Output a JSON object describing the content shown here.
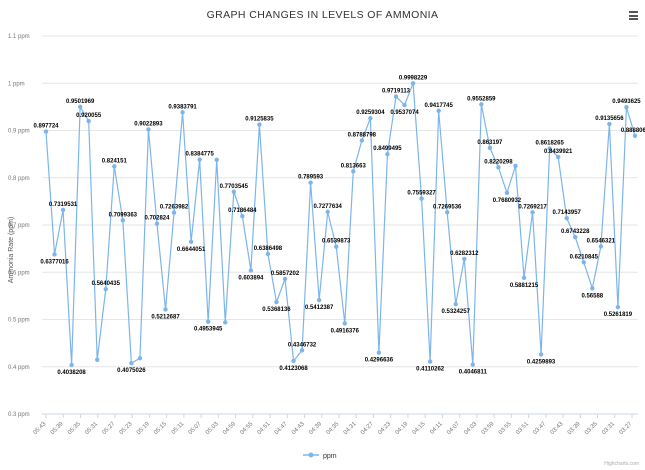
{
  "menu_icon": "hamburger-menu-icon",
  "credits": "Highcharts.com",
  "chart_data": {
    "type": "line",
    "title": "GRAPH CHANGES IN LEVELS OF AMMONIA",
    "ylabel": "Ammonia Rate (ppm)",
    "xlabel": "",
    "ylim": [
      0.3,
      1.1
    ],
    "y_ticks": [
      0.3,
      0.4,
      0.5,
      0.6,
      0.7,
      0.8,
      0.9,
      1.0,
      1.1
    ],
    "y_tick_labels": [
      "0.3 ppm",
      "0.4 ppm",
      "0.5 ppm",
      "0.6 ppm",
      "0.7 ppm",
      "0.8 ppm",
      "0.9 ppm",
      "1 ppm",
      "1.1 ppm"
    ],
    "x_tick_labels": [
      "05:43",
      "05:39",
      "05:35",
      "05:31",
      "05:27",
      "05:23",
      "05:19",
      "05:15",
      "05:11",
      "05:07",
      "05:03",
      "04:59",
      "04:55",
      "04:51",
      "04:47",
      "04:43",
      "04:39",
      "04:35",
      "04:31",
      "04:27",
      "04:23",
      "04:19",
      "04:15",
      "04:11",
      "04:07",
      "04:03",
      "03:59",
      "03:55",
      "03:51",
      "03:47",
      "03:43",
      "03:39",
      "03:35",
      "03:31",
      "03:27"
    ],
    "grid": true,
    "legend": "bottom-center",
    "series": [
      {
        "name": "ppm",
        "color": "#7cb5ec",
        "values": [
          "0.897724",
          "0.6377016",
          "0.7319531",
          "0.4038208",
          "0.9501969",
          "0.920055",
          "0.4148",
          "0.5640435",
          "0.824151",
          "0.7099363",
          "0.4075026",
          "0.4180",
          "0.9022893",
          "0.702824",
          "0.5212687",
          "0.7263982",
          "0.9383791",
          "0.6644051",
          "0.8384775",
          "0.4953945",
          "0.8380",
          "0.4940",
          "0.7703545",
          "0.7186484",
          "0.603894",
          "0.9125835",
          "0.6386498",
          "0.5368136",
          "0.5857202",
          "0.4123068",
          "0.4346732",
          "0.789593",
          "0.5412387",
          "0.7277634",
          "0.6539873",
          "0.4916376",
          "0.813663",
          "0.8788798",
          "0.9259304",
          "0.4296636",
          "0.8499495",
          "0.9719113",
          "0.9537074",
          "0.9998229",
          "0.7559327",
          "0.4110262",
          "0.9417745",
          "0.7269536",
          "0.5324257",
          "0.6282312",
          "0.4046811",
          "0.9552859",
          "0.863197",
          "0.8220298",
          "0.7680932",
          "0.8250",
          "0.5881215",
          "0.7269217",
          "0.4259893",
          "0.8618265",
          "0.8439921",
          "0.7143957",
          "0.6743228",
          "0.6210845",
          "0.56588",
          "0.6546321",
          "0.9135656",
          "0.5261819",
          "0.9493625",
          "0.8888069"
        ],
        "labels": [
          "0.897724",
          "0.6377016",
          "0.7319531",
          "0.4038208",
          "0.9501969",
          "0.920055",
          "",
          "0.5640435",
          "0.824151",
          "0.7099363",
          "0.4075026",
          "",
          "0.9022893",
          "0.702824",
          "0.5212687",
          "0.7263982",
          "0.9383791",
          "0.6644051",
          "0.8384775",
          "0.4953945",
          "",
          "",
          "0.7703545",
          "0.7186484",
          "0.603894",
          "0.9125835",
          "0.6386498",
          "0.5368136",
          "0.5857202",
          "0.4123068",
          "0.4346732",
          "0.789593",
          "0.5412387",
          "0.7277634",
          "0.6539873",
          "0.4916376",
          "0.813663",
          "0.8788798",
          "0.9259304",
          "0.4296636",
          "0.8499495",
          "0.9719113",
          "0.9537074",
          "0.9998229",
          "0.7559327",
          "0.4110262",
          "0.9417745",
          "0.7269536",
          "0.5324257",
          "0.6282312",
          "0.4046811",
          "0.9552859",
          "0.863197",
          "0.8220298",
          "0.7680932",
          "",
          "0.5881215",
          "0.7269217",
          "0.4259893",
          "0.8618265",
          "0.8439921",
          "0.7143957",
          "0.6743228",
          "0.6210845",
          "0.56588",
          "0.6546321",
          "0.9135656",
          "0.5261819",
          "0.9493625",
          "0.8888069"
        ]
      }
    ]
  }
}
